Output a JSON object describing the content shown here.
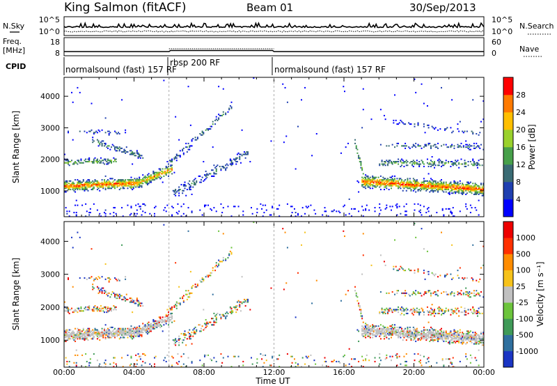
{
  "header": {
    "station": "King Salmon (fitACF)",
    "beam": "Beam 01",
    "date": "30/Sep/2013"
  },
  "noise_panel": {
    "left_label": "N.Sky",
    "right_label": "N.Search",
    "left_ticks": [
      "10^5",
      "10^0"
    ],
    "right_ticks": [
      "10^5",
      "10^0"
    ]
  },
  "freq_panel": {
    "left_label_1": "Freq.",
    "left_label_2": "[MHz]",
    "right_label": "Nave",
    "left_ticks": [
      "18",
      "8"
    ],
    "right_ticks": [
      "60",
      "0"
    ]
  },
  "cpid": {
    "label": "CPID",
    "segments": [
      {
        "name": "normalsound (fast) 157 RF",
        "start_hour": 0,
        "end_hour": 6
      },
      {
        "name": "rbsp 200 RF",
        "start_hour": 6,
        "end_hour": 12
      },
      {
        "name": "normalsound (fast) 157 RF",
        "start_hour": 12,
        "end_hour": 24
      }
    ]
  },
  "chart_data": [
    {
      "type": "heatmap",
      "quantity": "power",
      "xlabel": "",
      "ylabel": "Slant Range [km]",
      "xlim": [
        0,
        24
      ],
      "ylim": [
        180,
        4600
      ],
      "yticks": [
        1000,
        2000,
        3000,
        4000
      ],
      "colorbar": {
        "label": "Power [dB]",
        "ticks": [
          "4",
          "8",
          "12",
          "16",
          "20",
          "24",
          "28"
        ],
        "colors": [
          "#0000ff",
          "#1f3fb0",
          "#3a6b74",
          "#47a04a",
          "#9ad12c",
          "#ffbf00",
          "#ff7a00",
          "#ff0000"
        ]
      }
    },
    {
      "type": "heatmap",
      "quantity": "velocity",
      "xlabel": "Time UT",
      "ylabel": "Slant Range [km]",
      "xlim": [
        0,
        24
      ],
      "ylim": [
        180,
        4600
      ],
      "yticks": [
        1000,
        2000,
        3000,
        4000
      ],
      "xtick_labels": [
        "00:00",
        "04:00",
        "08:00",
        "12:00",
        "16:00",
        "20:00",
        "00:00"
      ],
      "colorbar": {
        "label": "Velocity [m s⁻¹]",
        "ticks": [
          "1000",
          "500",
          "100",
          "25",
          "-25",
          "-100",
          "-500",
          "-1000"
        ],
        "colors": [
          "#1a35c4",
          "#2f6f9e",
          "#3f9a58",
          "#6cc43c",
          "#c0c0c0",
          "#f6c21a",
          "#ff8c00",
          "#ff3000",
          "#ee0000"
        ]
      }
    }
  ]
}
